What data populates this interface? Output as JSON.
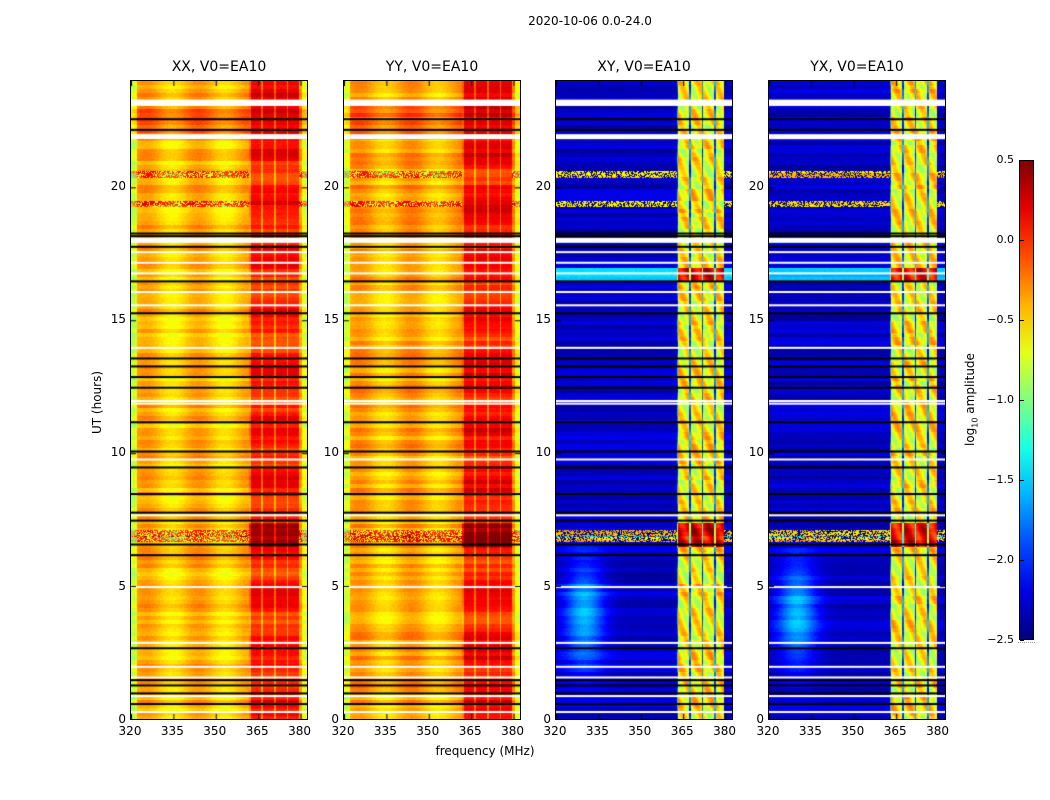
{
  "suptitle": "2020-10-06 0.0-24.0",
  "chart_data": {
    "type": "heatmap",
    "title": "2020-10-06 0.0-24.0",
    "xlabel": "frequency (MHz)",
    "ylabel": "UT (hours)",
    "xlim": [
      320,
      383
    ],
    "ylim": [
      0,
      24
    ],
    "xticks": [
      "320",
      "335",
      "350",
      "365",
      "380"
    ],
    "yticks": [
      "0",
      "5",
      "10",
      "15",
      "20"
    ],
    "xtick_values": [
      320,
      335,
      350,
      365,
      380
    ],
    "ytick_values": [
      0,
      5,
      10,
      15,
      20
    ],
    "colorbar": {
      "label": "log₁₀ amplitude",
      "range": [
        -2.5,
        0.5
      ],
      "ticks": [
        "0.5",
        "0.0",
        "−0.5",
        "−1.0",
        "−1.5",
        "−2.0",
        "−2.5"
      ],
      "tick_values": [
        0.5,
        0.0,
        -0.5,
        -1.0,
        -1.5,
        -2.0,
        -2.5
      ],
      "colormap": "jet"
    },
    "panels": [
      {
        "title": "XX, V0=EA10",
        "type": "auto",
        "base_level": -0.45,
        "rfi_band_mhz": [
          362,
          380
        ],
        "rfi_level": 0.05
      },
      {
        "title": "YY, V0=EA10",
        "type": "auto",
        "base_level": -0.4,
        "rfi_band_mhz": [
          362,
          380
        ],
        "rfi_level": 0.1
      },
      {
        "title": "XY, V0=EA10",
        "type": "cross",
        "base_level": -2.3,
        "rfi_band_mhz": [
          363,
          380
        ],
        "rfi_level": -0.6
      },
      {
        "title": "YX, V0=EA10",
        "type": "cross",
        "base_level": -2.3,
        "rfi_band_mhz": [
          363,
          380
        ],
        "rfi_level": -0.6
      }
    ],
    "flagged_white_hours": [
      23.3,
      23.25,
      22.0,
      18.1,
      17.6,
      17.2,
      16.8,
      16.1,
      15.6,
      14.0,
      12.0,
      11.9,
      9.8,
      7.7,
      5.0,
      2.9,
      2.0,
      1.6,
      0.9,
      0.3
    ],
    "flagged_black_hours": [
      22.6,
      22.2,
      18.3,
      18.2,
      17.8,
      16.5,
      15.3,
      13.6,
      13.3,
      12.9,
      12.5,
      11.2,
      10.1,
      9.5,
      8.5,
      7.8,
      7.5,
      6.6,
      6.2,
      2.7,
      1.5,
      1.3,
      1.0,
      0.6
    ],
    "strong_rfi_hours": [
      20.5,
      19.4,
      7.0,
      6.8
    ]
  }
}
